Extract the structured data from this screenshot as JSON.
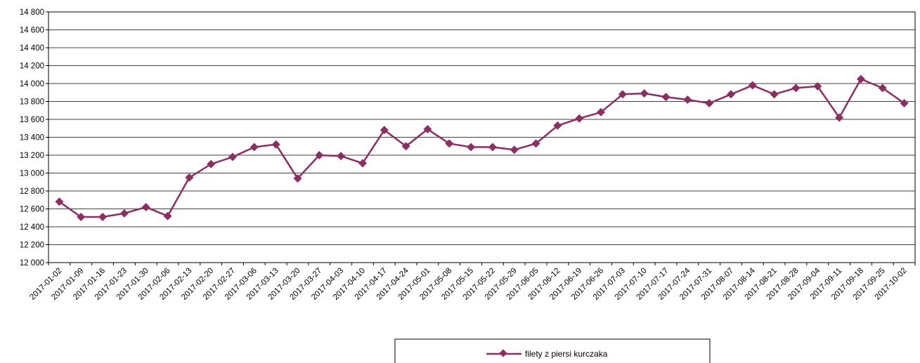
{
  "chart_data": {
    "type": "line",
    "title": "",
    "xlabel": "",
    "ylabel": "",
    "ylim": [
      12000,
      14800
    ],
    "ytick_step": 200,
    "grid": true,
    "legend_position": "bottom-center",
    "colors": {
      "series": "#8b2e62",
      "grid": "#000000",
      "axis": "#000000"
    },
    "categories": [
      "2017-01-02",
      "2017-01-09",
      "2017-01-16",
      "2017-01-23",
      "2017-01-30",
      "2017-02-06",
      "2017-02-13",
      "2017-02-20",
      "2017-02-27",
      "2017-03-06",
      "2017-03-13",
      "2017-03-20",
      "2017-03-27",
      "2017-04-03",
      "2017-04-10",
      "2017-04-17",
      "2017-04-24",
      "2017-05-01",
      "2017-05-08",
      "2017-05-15",
      "2017-05-22",
      "2017-05-29",
      "2017-06-05",
      "2017-06-12",
      "2017-06-19",
      "2017-06-26",
      "2017-07-03",
      "2017-07-10",
      "2017-07-17",
      "2017-07-24",
      "2017-07-31",
      "2017-08-07",
      "2017-08-14",
      "2017-08-21",
      "2017-08-28",
      "2017-09-04",
      "2017-09-11",
      "2017-09-18",
      "2017-09-25",
      "2017-10-02"
    ],
    "series": [
      {
        "name": "filety z piersi kurczaka",
        "values": [
          12680,
          12510,
          12510,
          12550,
          12620,
          12520,
          12950,
          13100,
          13180,
          13290,
          13320,
          12940,
          13200,
          13190,
          13110,
          13480,
          13300,
          13490,
          13330,
          13290,
          13290,
          13260,
          13330,
          13530,
          13610,
          13680,
          13880,
          13890,
          13850,
          13820,
          13780,
          13880,
          13980,
          13880,
          13950,
          13970,
          13620,
          14050,
          13950,
          13780
        ]
      }
    ]
  }
}
